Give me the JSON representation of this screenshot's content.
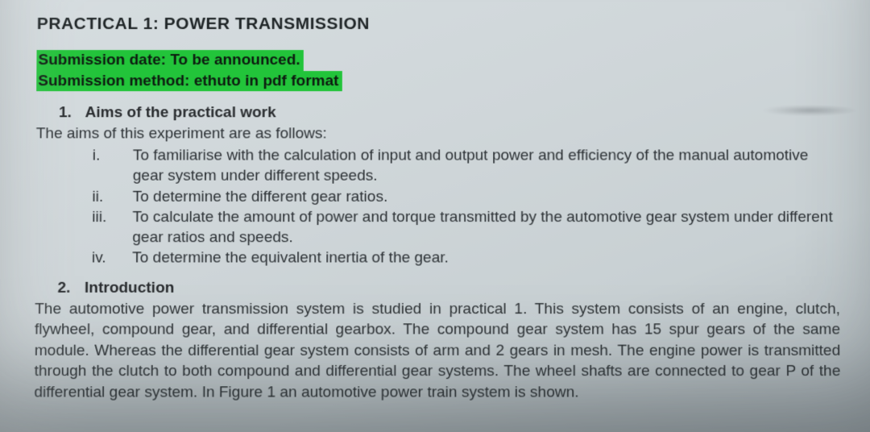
{
  "title": "PRACTICAL 1: POWER TRANSMISSION",
  "highlight": {
    "line1": "Submission date: To be announced.",
    "line2": "Submission method: ethuto in pdf format",
    "bg_color": "#22c43a"
  },
  "section1": {
    "number": "1.",
    "heading": "Aims of the practical work",
    "lead": "The aims of this experiment are as follows:",
    "items": [
      {
        "marker": "i.",
        "text": "To familiarise with the calculation of input and output power and efficiency of the manual automotive gear system under different speeds."
      },
      {
        "marker": "ii.",
        "text": "To determine the different gear ratios."
      },
      {
        "marker": "iii.",
        "text": "To calculate the amount of power and torque transmitted by the automotive gear system under different gear ratios and speeds."
      },
      {
        "marker": "iv.",
        "text": "To determine the equivalent inertia of the gear."
      }
    ]
  },
  "section2": {
    "number": "2.",
    "heading": "Introduction",
    "body": "The automotive power transmission system is studied in practical 1. This system consists of an engine, clutch, flywheel, compound gear, and differential gearbox. The compound gear system has 15 spur gears of the same module. Whereas the differential gear system consists of arm and 2 gears in mesh. The engine power is transmitted through the clutch to both compound and differential gear systems. The wheel shafts are connected to gear P of the differential gear system. In Figure 1 an automotive power train system is shown."
  },
  "style": {
    "font_family": "Arial",
    "body_fontsize_pt": 14,
    "title_fontsize_pt": 16,
    "text_color": "#2a2d30",
    "background_gradient": [
      "#d6dde0",
      "#aeb6ba"
    ]
  }
}
